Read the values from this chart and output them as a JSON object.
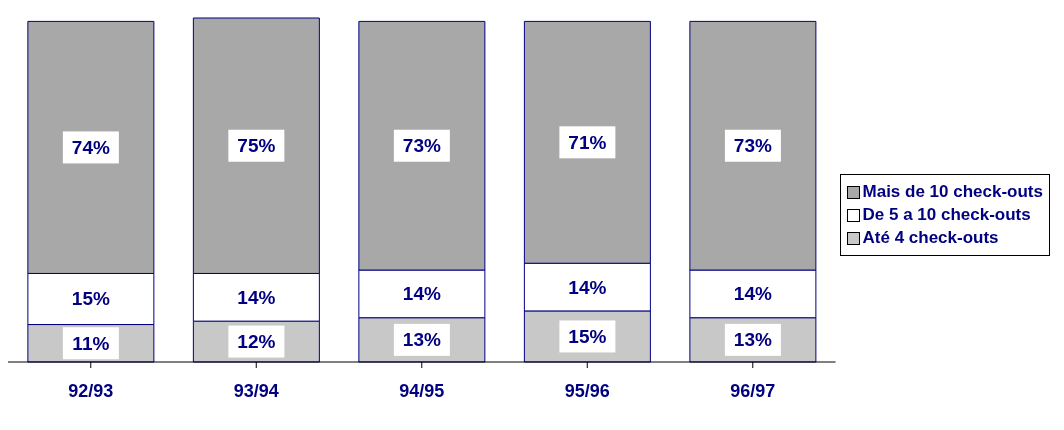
{
  "chart_data": {
    "type": "bar",
    "stacked": true,
    "categories": [
      "92/93",
      "93/94",
      "94/95",
      "95/96",
      "96/97"
    ],
    "series": [
      {
        "name": "Até 4 check-outs",
        "color": "#c8c8c8",
        "values": [
          11,
          12,
          13,
          15,
          13
        ],
        "value_labels": [
          "11%",
          "12%",
          "13%",
          "15%",
          "13%"
        ]
      },
      {
        "name": "De 5 a 10 check-outs",
        "color": "#ffffff",
        "values": [
          15,
          14,
          14,
          14,
          14
        ],
        "value_labels": [
          "15%",
          "14%",
          "14%",
          "14%",
          "14%"
        ]
      },
      {
        "name": "Mais de 10 check-outs",
        "color": "#a8a8a8",
        "values": [
          74,
          75,
          73,
          71,
          73
        ],
        "value_labels": [
          "74%",
          "75%",
          "73%",
          "71%",
          "73%"
        ]
      }
    ],
    "legend": "right",
    "grid": false
  }
}
